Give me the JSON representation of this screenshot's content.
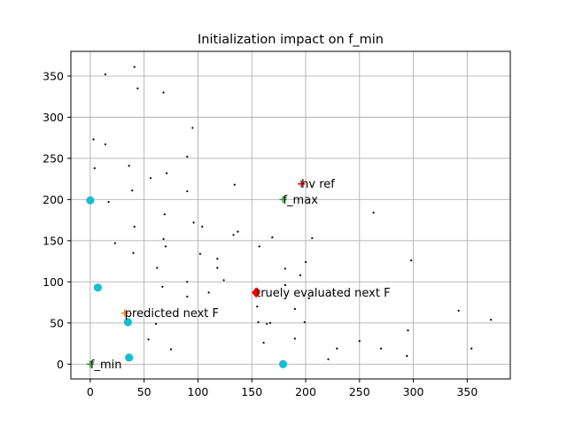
{
  "chart_data": {
    "type": "scatter",
    "title": "Initialization impact on f_min",
    "xlabel": "",
    "ylabel": "",
    "xlim": [
      -18,
      390
    ],
    "ylim": [
      -18,
      380
    ],
    "xticks": [
      0,
      50,
      100,
      150,
      200,
      250,
      300,
      350
    ],
    "yticks": [
      0,
      50,
      100,
      150,
      200,
      250,
      300,
      350
    ],
    "grid": true,
    "series": [
      {
        "role": "population",
        "marker": "dot",
        "color": "#000000",
        "points": [
          [
            14,
            352
          ],
          [
            41,
            361
          ],
          [
            44,
            335
          ],
          [
            68,
            330
          ],
          [
            95,
            287
          ],
          [
            3,
            273
          ],
          [
            14,
            267
          ],
          [
            90,
            252
          ],
          [
            4,
            238
          ],
          [
            36,
            241
          ],
          [
            71,
            232
          ],
          [
            56,
            226
          ],
          [
            39,
            211
          ],
          [
            90,
            210
          ],
          [
            17,
            197
          ],
          [
            134,
            218
          ],
          [
            263,
            184
          ],
          [
            69,
            182
          ],
          [
            96,
            172
          ],
          [
            41,
            167
          ],
          [
            104,
            167
          ],
          [
            137,
            161
          ],
          [
            133,
            157
          ],
          [
            68,
            152
          ],
          [
            169,
            154
          ],
          [
            206,
            153
          ],
          [
            23,
            147
          ],
          [
            70,
            143
          ],
          [
            157,
            143
          ],
          [
            40,
            135
          ],
          [
            102,
            134
          ],
          [
            118,
            128
          ],
          [
            200,
            124
          ],
          [
            298,
            126
          ],
          [
            62,
            117
          ],
          [
            118,
            117
          ],
          [
            181,
            116
          ],
          [
            124,
            102
          ],
          [
            90,
            100
          ],
          [
            195,
            108
          ],
          [
            67,
            94
          ],
          [
            181,
            96
          ],
          [
            110,
            87
          ],
          [
            226,
            86
          ],
          [
            90,
            82
          ],
          [
            203,
            80
          ],
          [
            155,
            70
          ],
          [
            190,
            67
          ],
          [
            342,
            65
          ],
          [
            372,
            54
          ],
          [
            61,
            49
          ],
          [
            156,
            51
          ],
          [
            164,
            49
          ],
          [
            167,
            50
          ],
          [
            199,
            51
          ],
          [
            295,
            41
          ],
          [
            54,
            30
          ],
          [
            161,
            26
          ],
          [
            190,
            31
          ],
          [
            250,
            28
          ],
          [
            75,
            18
          ],
          [
            229,
            19
          ],
          [
            270,
            19
          ],
          [
            354,
            19
          ],
          [
            294,
            10
          ],
          [
            221,
            6
          ]
        ]
      },
      {
        "role": "initial",
        "marker": "circle",
        "color": "#17becf",
        "points": [
          [
            0,
            199
          ],
          [
            7,
            93
          ],
          [
            35,
            51
          ],
          [
            36,
            8
          ],
          [
            179,
            0
          ]
        ]
      }
    ],
    "annotations": [
      {
        "label": "hv ref",
        "x": 196,
        "y": 219,
        "marker": "plus",
        "color": "#ff0000"
      },
      {
        "label": "f_max",
        "x": 179,
        "y": 200,
        "marker": "plus",
        "color": "#2ca02c"
      },
      {
        "label": "truely evaluated next F",
        "x": 154,
        "y": 87,
        "marker": "diamond",
        "color": "#ff0000"
      },
      {
        "label": "predicted next F",
        "x": 32,
        "y": 62,
        "marker": "plus",
        "color": "#ff7f0e"
      },
      {
        "label": "f_min",
        "x": 0,
        "y": 0,
        "marker": "plus",
        "color": "#2ca02c"
      }
    ]
  }
}
